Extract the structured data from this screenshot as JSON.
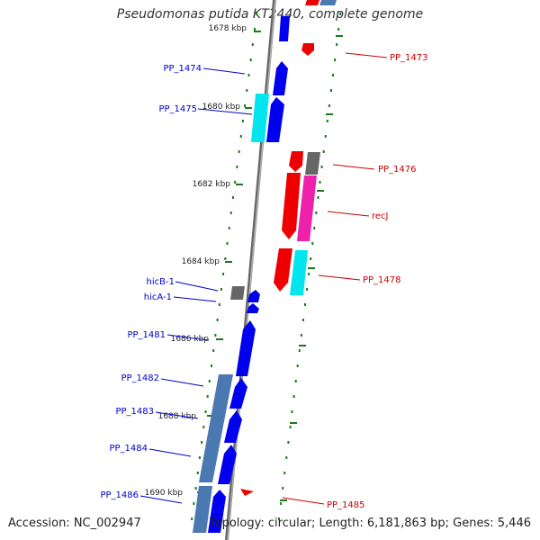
{
  "title": "Pseudomonas putida KT2440, complete genome",
  "footer": {
    "accession": "Accession: NC_002947",
    "summary": "Topology: circular; Length: 6,181,863 bp; Genes: 5,446"
  },
  "colors": {
    "forward_label": "#0000cc",
    "reverse_label": "#cc0000",
    "tick": "#1a7a1a",
    "axis": "#888888"
  },
  "kbp_ticks": [
    "1678 kbp",
    "1680 kbp",
    "1682 kbp",
    "1684 kbp",
    "1686 kbp",
    "1688 kbp",
    "1690 kbp"
  ],
  "forward_genes": [
    "PP_1474",
    "PP_1475",
    "hicB-1",
    "hicA-1",
    "PP_1481",
    "PP_1482",
    "PP_1483",
    "PP_1484",
    "PP_1486"
  ],
  "reverse_genes": [
    "PP_1473",
    "PP_1476",
    "recJ",
    "PP_1478",
    "PP_1485"
  ]
}
